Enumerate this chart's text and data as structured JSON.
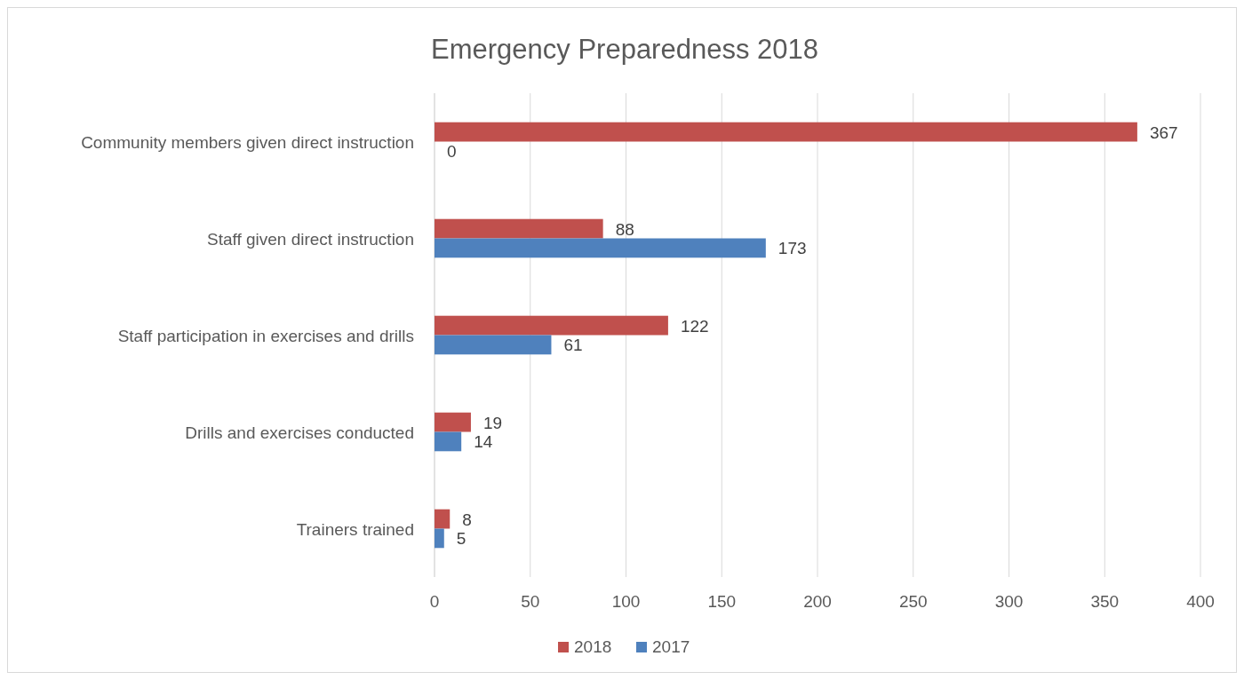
{
  "chart_data": {
    "type": "bar",
    "orientation": "horizontal",
    "title": "Emergency Preparedness 2018",
    "categories": [
      "Community members given direct instruction",
      "Staff given direct instruction",
      "Staff participation in exercises and drills",
      "Drills and exercises conducted",
      "Trainers trained"
    ],
    "series": [
      {
        "name": "2018",
        "color": "#c0504d",
        "values": [
          367,
          88,
          122,
          19,
          8
        ]
      },
      {
        "name": "2017",
        "color": "#4f81bd",
        "values": [
          0,
          173,
          61,
          14,
          5
        ]
      }
    ],
    "xlim": [
      0,
      400
    ],
    "xticks": [
      0,
      50,
      100,
      150,
      200,
      250,
      300,
      350,
      400
    ],
    "grid": "x",
    "legend": "bottom",
    "data_labels": true
  }
}
